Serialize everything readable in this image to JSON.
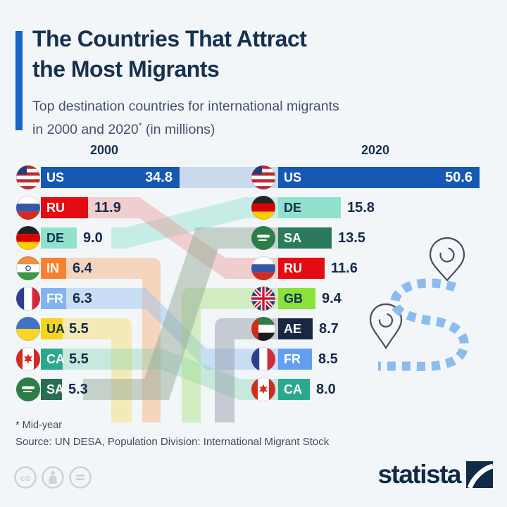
{
  "header": {
    "title_line1": "The Countries That Attract",
    "title_line2": "the Most Migrants",
    "subtitle_line1": "Top destination countries for international migrants",
    "subtitle_line2_pre": "in 2000 and 2020",
    "subtitle_superscript": "*",
    "subtitle_line2_post": " (in millions)"
  },
  "chart_data": {
    "type": "bar",
    "title": "Top destination countries for international migrants in 2000 and 2020 (in millions)",
    "unit": "millions",
    "legend_position": "none",
    "grid": false,
    "columns": [
      {
        "year": "2000",
        "entries": [
          {
            "code": "US",
            "value": 34.8,
            "label": "34.8",
            "bar_color": "#1659b5",
            "code_color": "#ffffff",
            "value_color": "#ffffff",
            "value_inside": true
          },
          {
            "code": "RU",
            "value": 11.9,
            "label": "11.9",
            "bar_color": "#e40b12",
            "code_color": "#ffffff",
            "value_color": "#15294a",
            "value_inside": false
          },
          {
            "code": "DE",
            "value": 9.0,
            "label": "9.0",
            "bar_color": "#90e2cf",
            "code_color": "#15304e",
            "value_color": "#15294a",
            "value_inside": false
          },
          {
            "code": "IN",
            "value": 6.4,
            "label": "6.4",
            "bar_color": "#f8812f",
            "code_color": "#ffffff",
            "value_color": "#15294a",
            "value_inside": false
          },
          {
            "code": "FR",
            "value": 6.3,
            "label": "6.3",
            "bar_color": "#82b4f0",
            "code_color": "#ffffff",
            "value_color": "#15294a",
            "value_inside": false
          },
          {
            "code": "UA",
            "value": 5.5,
            "label": "5.5",
            "bar_color": "#f5d41d",
            "code_color": "#15304e",
            "value_color": "#15294a",
            "value_inside": false
          },
          {
            "code": "CA",
            "value": 5.5,
            "label": "5.5",
            "bar_color": "#2ba98d",
            "code_color": "#ffffff",
            "value_color": "#15294a",
            "value_inside": false
          },
          {
            "code": "SA",
            "value": 5.3,
            "label": "5.3",
            "bar_color": "#286e52",
            "code_color": "#ffffff",
            "value_color": "#15294a",
            "value_inside": false
          }
        ]
      },
      {
        "year": "2020",
        "entries": [
          {
            "code": "US",
            "value": 50.6,
            "label": "50.6",
            "bar_color": "#1659b5",
            "code_color": "#ffffff",
            "value_color": "#ffffff",
            "value_inside": true
          },
          {
            "code": "DE",
            "value": 15.8,
            "label": "15.8",
            "bar_color": "#90e2cf",
            "code_color": "#15304e",
            "value_color": "#15294a",
            "value_inside": false
          },
          {
            "code": "SA",
            "value": 13.5,
            "label": "13.5",
            "bar_color": "#2b7a5e",
            "code_color": "#ffffff",
            "value_color": "#15294a",
            "value_inside": false
          },
          {
            "code": "RU",
            "value": 11.6,
            "label": "11.6",
            "bar_color": "#e40b12",
            "code_color": "#ffffff",
            "value_color": "#15294a",
            "value_inside": false
          },
          {
            "code": "GB",
            "value": 9.4,
            "label": "9.4",
            "bar_color": "#8ce23c",
            "code_color": "#15304e",
            "value_color": "#15294a",
            "value_inside": false
          },
          {
            "code": "AE",
            "value": 8.7,
            "label": "8.7",
            "bar_color": "#192842",
            "code_color": "#ffffff",
            "value_color": "#15294a",
            "value_inside": false
          },
          {
            "code": "FR",
            "value": 8.5,
            "label": "8.5",
            "bar_color": "#639ef2",
            "code_color": "#ffffff",
            "value_color": "#15294a",
            "value_inside": false
          },
          {
            "code": "CA",
            "value": 8.0,
            "label": "8.0",
            "bar_color": "#2ba98d",
            "code_color": "#ffffff",
            "value_color": "#15294a",
            "value_inside": false
          }
        ]
      }
    ],
    "flows": [
      {
        "code": "US",
        "from": "2000",
        "to": "2020",
        "color": "rgba(168,195,225,0.55)"
      },
      {
        "code": "DE",
        "from": "2000",
        "to": "2020",
        "color": "rgba(143,226,207,0.45)"
      },
      {
        "code": "RU",
        "from": "2000",
        "to": "2020",
        "color": "rgba(235,150,148,0.42)"
      },
      {
        "code": "IN",
        "from": "2000",
        "to": null,
        "color": "rgba(250,160,95,0.38)"
      },
      {
        "code": "FR",
        "from": "2000",
        "to": "2020",
        "color": "rgba(150,190,240,0.45)"
      },
      {
        "code": "UA",
        "from": "2000",
        "to": null,
        "color": "rgba(244,212,60,0.35)"
      },
      {
        "code": "CA",
        "from": "2000",
        "to": "2020",
        "color": "rgba(120,205,170,0.35)"
      },
      {
        "code": "GB",
        "from": null,
        "to": "2020",
        "color": "rgba(160,225,110,0.40)"
      },
      {
        "code": "AE",
        "from": null,
        "to": "2020",
        "color": "rgba(150,160,172,0.50)"
      },
      {
        "code": "SA",
        "from": "2000",
        "to": "2020",
        "color": "rgba(150,170,152,0.50)"
      }
    ]
  },
  "footer": {
    "footnote": "* Mid-year",
    "source": "Source: UN DESA, Population Division: International Migrant Stock",
    "license_cc_glyph": "cc",
    "logo_text": "statista"
  },
  "colors": {
    "background": "#f3f6f9",
    "accent_bar": "#1565c8",
    "title_text": "#16314f",
    "subtitle_text": "#42526b",
    "value_text": "#15294a",
    "route_dash": "#8cbcee",
    "pin_outline": "#474e58",
    "logo_navy": "#112a47",
    "cc_gray": "#ccd3da"
  }
}
